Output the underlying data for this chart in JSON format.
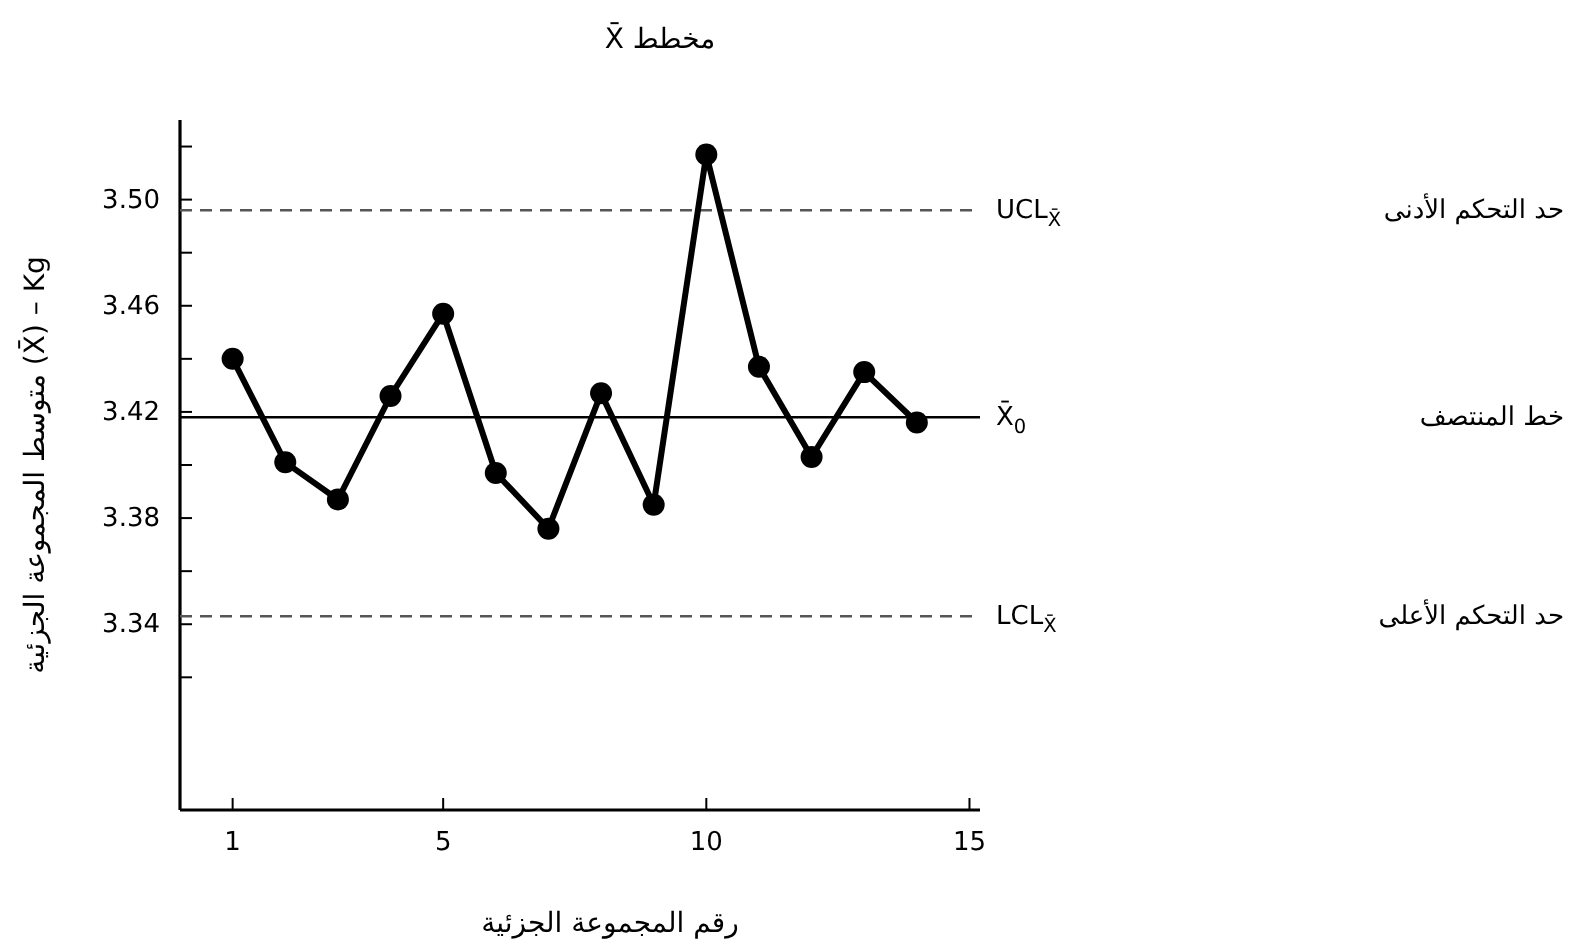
{
  "chart_data": {
    "type": "line",
    "title": "مخطط X̄",
    "xlabel": "رقم المجموعة الجزئية",
    "ylabel": "متوسط المجموعة الجزئية (X̄) – Kg",
    "x": [
      1,
      2,
      3,
      4,
      5,
      6,
      7,
      8,
      9,
      10,
      11,
      12,
      13,
      14
    ],
    "series": [
      {
        "color": "#000000",
        "values": [
          3.44,
          3.401,
          3.387,
          3.426,
          3.457,
          3.397,
          3.376,
          3.427,
          3.385,
          3.517,
          3.437,
          3.403,
          3.435,
          3.416
        ]
      }
    ],
    "xlim": [
      0,
      15.2
    ],
    "xticks": [
      1,
      5,
      10,
      15
    ],
    "ylim": [
      3.27,
      3.53
    ],
    "yticks": [
      {
        "value": 3.32,
        "label": null
      },
      3.34,
      {
        "value": 3.36,
        "label": null
      },
      3.38,
      {
        "value": 3.4,
        "label": null
      },
      3.42,
      {
        "value": 3.44,
        "label": null
      },
      3.46,
      {
        "value": 3.48,
        "label": null
      },
      {
        "value": 3.5,
        "label": "3.50"
      },
      {
        "value": 3.52,
        "label": null
      }
    ],
    "ref_lines": [
      {
        "axis": "y",
        "value": 3.496,
        "label": "UCL$_{X̄}$",
        "line_style": "dashed",
        "color": "#555555"
      },
      {
        "axis": "y",
        "value": 3.418,
        "label": "X̄$_{0}$",
        "line_style": "solid",
        "color": "#000000"
      },
      {
        "axis": "y",
        "value": 3.343,
        "label": "LCL$_{X̄}$",
        "line_style": "dashed",
        "color": "#555555"
      }
    ],
    "annotations": [
      "حد التحكم الأدنى",
      "خط المنتصف",
      "حد التحكم الأعلى"
    ],
    "marker": "circle",
    "line_style": "solid",
    "grid": false
  }
}
